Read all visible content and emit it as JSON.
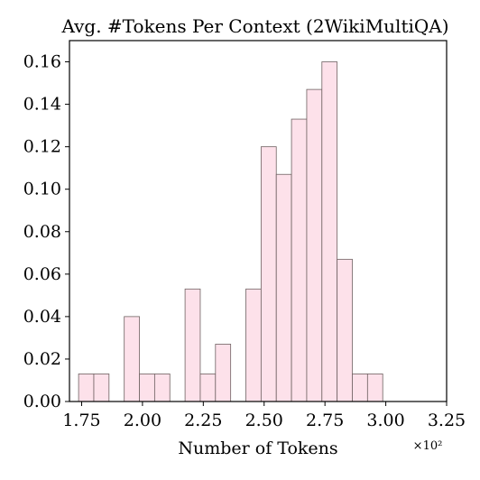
{
  "chart_data": {
    "type": "bar",
    "title": "Avg. #Tokens Per Context (2WikiMultiQA)",
    "xlabel": "Number of Tokens",
    "ylabel": "",
    "x_multiplier_label": "×10²",
    "bin_width": 0.0625,
    "xlim": [
      1.7,
      3.25
    ],
    "ylim": [
      0,
      0.17
    ],
    "xticks": [
      1.75,
      2.0,
      2.25,
      2.5,
      2.75,
      3.0,
      3.25
    ],
    "xtick_labels": [
      "1.75",
      "2.00",
      "2.25",
      "2.50",
      "2.75",
      "3.00",
      "3.25"
    ],
    "yticks": [
      0.0,
      0.02,
      0.04,
      0.06,
      0.08,
      0.1,
      0.12,
      0.14,
      0.16
    ],
    "ytick_labels": [
      "0.00",
      "0.02",
      "0.04",
      "0.06",
      "0.08",
      "0.10",
      "0.12",
      "0.14",
      "0.16"
    ],
    "bins": [
      {
        "x0": 1.7375,
        "value": 0.013
      },
      {
        "x0": 1.8,
        "value": 0.013
      },
      {
        "x0": 1.8625,
        "value": 0.0
      },
      {
        "x0": 1.925,
        "value": 0.04
      },
      {
        "x0": 1.9875,
        "value": 0.013
      },
      {
        "x0": 2.05,
        "value": 0.013
      },
      {
        "x0": 2.1125,
        "value": 0.0
      },
      {
        "x0": 2.175,
        "value": 0.053
      },
      {
        "x0": 2.2375,
        "value": 0.013
      },
      {
        "x0": 2.3,
        "value": 0.027
      },
      {
        "x0": 2.3625,
        "value": 0.0
      },
      {
        "x0": 2.425,
        "value": 0.053
      },
      {
        "x0": 2.4875,
        "value": 0.12
      },
      {
        "x0": 2.55,
        "value": 0.107
      },
      {
        "x0": 2.6125,
        "value": 0.133
      },
      {
        "x0": 2.675,
        "value": 0.147
      },
      {
        "x0": 2.7375,
        "value": 0.16
      },
      {
        "x0": 2.8,
        "value": 0.067
      },
      {
        "x0": 2.8625,
        "value": 0.013
      },
      {
        "x0": 2.925,
        "value": 0.013
      }
    ],
    "bar_color": "#fde1ea",
    "edge_color": "#6f6262",
    "grid": false,
    "legend": "none"
  }
}
